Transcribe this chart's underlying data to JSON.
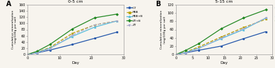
{
  "panel_A": {
    "title": "0-5 cm",
    "xlabel": "Day",
    "ylabel": "Cumulative mineralization\n(mg/100g per soil)",
    "ylim": [
      0,
      160
    ],
    "xlim": [
      0,
      30
    ],
    "xticks": [
      0,
      10,
      20,
      30
    ],
    "yticks": [
      0,
      20,
      40,
      60,
      80,
      100,
      120,
      140,
      160
    ],
    "series": {
      "CT": {
        "x": [
          0,
          3,
          7,
          14,
          21,
          28
        ],
        "y": [
          0,
          5,
          14,
          32,
          52,
          72
        ],
        "color": "#2255aa",
        "marker": "o",
        "ls": "-"
      },
      "PBB": {
        "x": [
          0,
          3,
          7,
          14,
          21,
          28
        ],
        "y": [
          0,
          7,
          22,
          68,
          95,
          108
        ],
        "color": "#b8a000",
        "marker": "s",
        "ls": "--"
      },
      "PBB+B": {
        "x": [
          0,
          3,
          7,
          14,
          21,
          28
        ],
        "y": [
          0,
          6,
          20,
          58,
          88,
          108
        ],
        "color": "#55bbdd",
        "marker": "^",
        "ls": "-"
      },
      "ZT+B": {
        "x": [
          0,
          3,
          7,
          14,
          21,
          28
        ],
        "y": [
          0,
          10,
          32,
          82,
          118,
          130
        ],
        "color": "#228822",
        "marker": "D",
        "ls": "-"
      },
      "ZT": {
        "x": [
          0,
          3,
          7,
          14,
          21,
          28
        ],
        "y": [
          0,
          5,
          18,
          62,
          95,
          108
        ],
        "color": "#aaaacc",
        "marker": "v",
        "ls": "--"
      }
    }
  },
  "panel_B": {
    "title": "5-15 cm",
    "xlabel": "Day",
    "ylabel": "Cumulative mineralization\n(mg/100g per soil)",
    "ylim": [
      0,
      120
    ],
    "xlim": [
      0,
      30
    ],
    "xticks": [
      0,
      5,
      10,
      15,
      20,
      25,
      30
    ],
    "yticks": [
      0,
      20,
      40,
      60,
      80,
      100,
      120
    ],
    "series": {
      "CT": {
        "x": [
          0,
          3,
          7,
          14,
          21,
          28
        ],
        "y": [
          0,
          4,
          10,
          20,
          38,
          55
        ],
        "color": "#2255aa",
        "marker": "o",
        "ls": "-"
      },
      "PBB": {
        "x": [
          0,
          3,
          7,
          14,
          21,
          28
        ],
        "y": [
          0,
          6,
          18,
          42,
          65,
          85
        ],
        "color": "#b8a000",
        "marker": "s",
        "ls": "--"
      },
      "PBB+B": {
        "x": [
          0,
          3,
          7,
          14,
          21,
          28
        ],
        "y": [
          0,
          5,
          15,
          38,
          60,
          88
        ],
        "color": "#55bbdd",
        "marker": "^",
        "ls": "-"
      },
      "ZT+B": {
        "x": [
          0,
          3,
          7,
          14,
          21,
          28
        ],
        "y": [
          0,
          10,
          26,
          62,
          88,
          108
        ],
        "color": "#228822",
        "marker": "D",
        "ls": "-"
      },
      "ZT": {
        "x": [
          0,
          3,
          7,
          14,
          21,
          28
        ],
        "y": [
          0,
          4,
          14,
          40,
          62,
          88
        ],
        "color": "#aaaacc",
        "marker": "v",
        "ls": "--"
      }
    }
  },
  "legend_order": [
    "CT",
    "PBB",
    "PBB+B",
    "ZT+B",
    "ZT"
  ],
  "panel_labels": [
    "A",
    "B"
  ],
  "bg_color": "#f7f4ee",
  "figsize": [
    4.0,
    1.0
  ],
  "dpi": 100
}
